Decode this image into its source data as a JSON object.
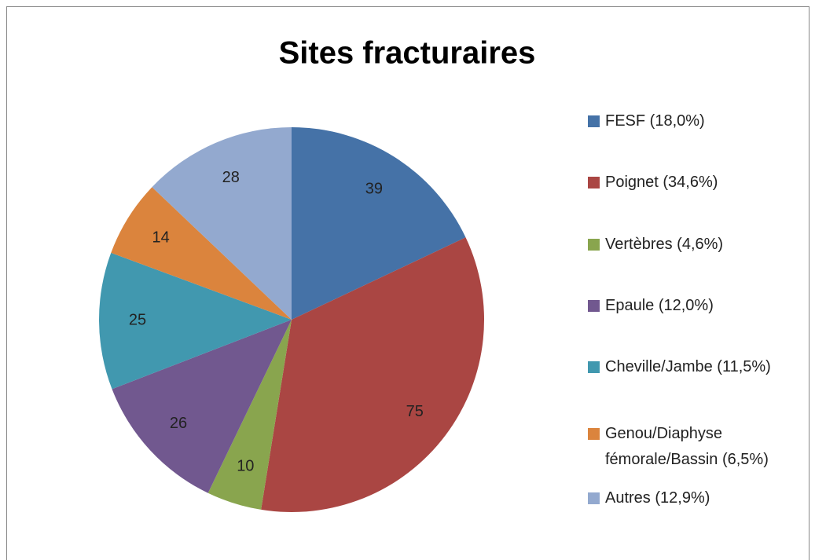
{
  "chart_data": {
    "type": "pie",
    "title": "Sites fracturaires",
    "categories": [
      "FESF (18,0%)",
      "Poignet (34,6%)",
      "Vertèbres (4,6%)",
      "Epaule (12,0%)",
      "Cheville/Jambe (11,5%)",
      "Genou/Diaphyse fémorale/Bassin (6,5%)",
      "Autres (12,9%)"
    ],
    "values": [
      39,
      75,
      10,
      26,
      25,
      14,
      28
    ],
    "colors": [
      "#4572a7",
      "#aa4643",
      "#89a54e",
      "#71588f",
      "#4198af",
      "#db843d",
      "#93a9cf"
    ],
    "legend": "right"
  }
}
